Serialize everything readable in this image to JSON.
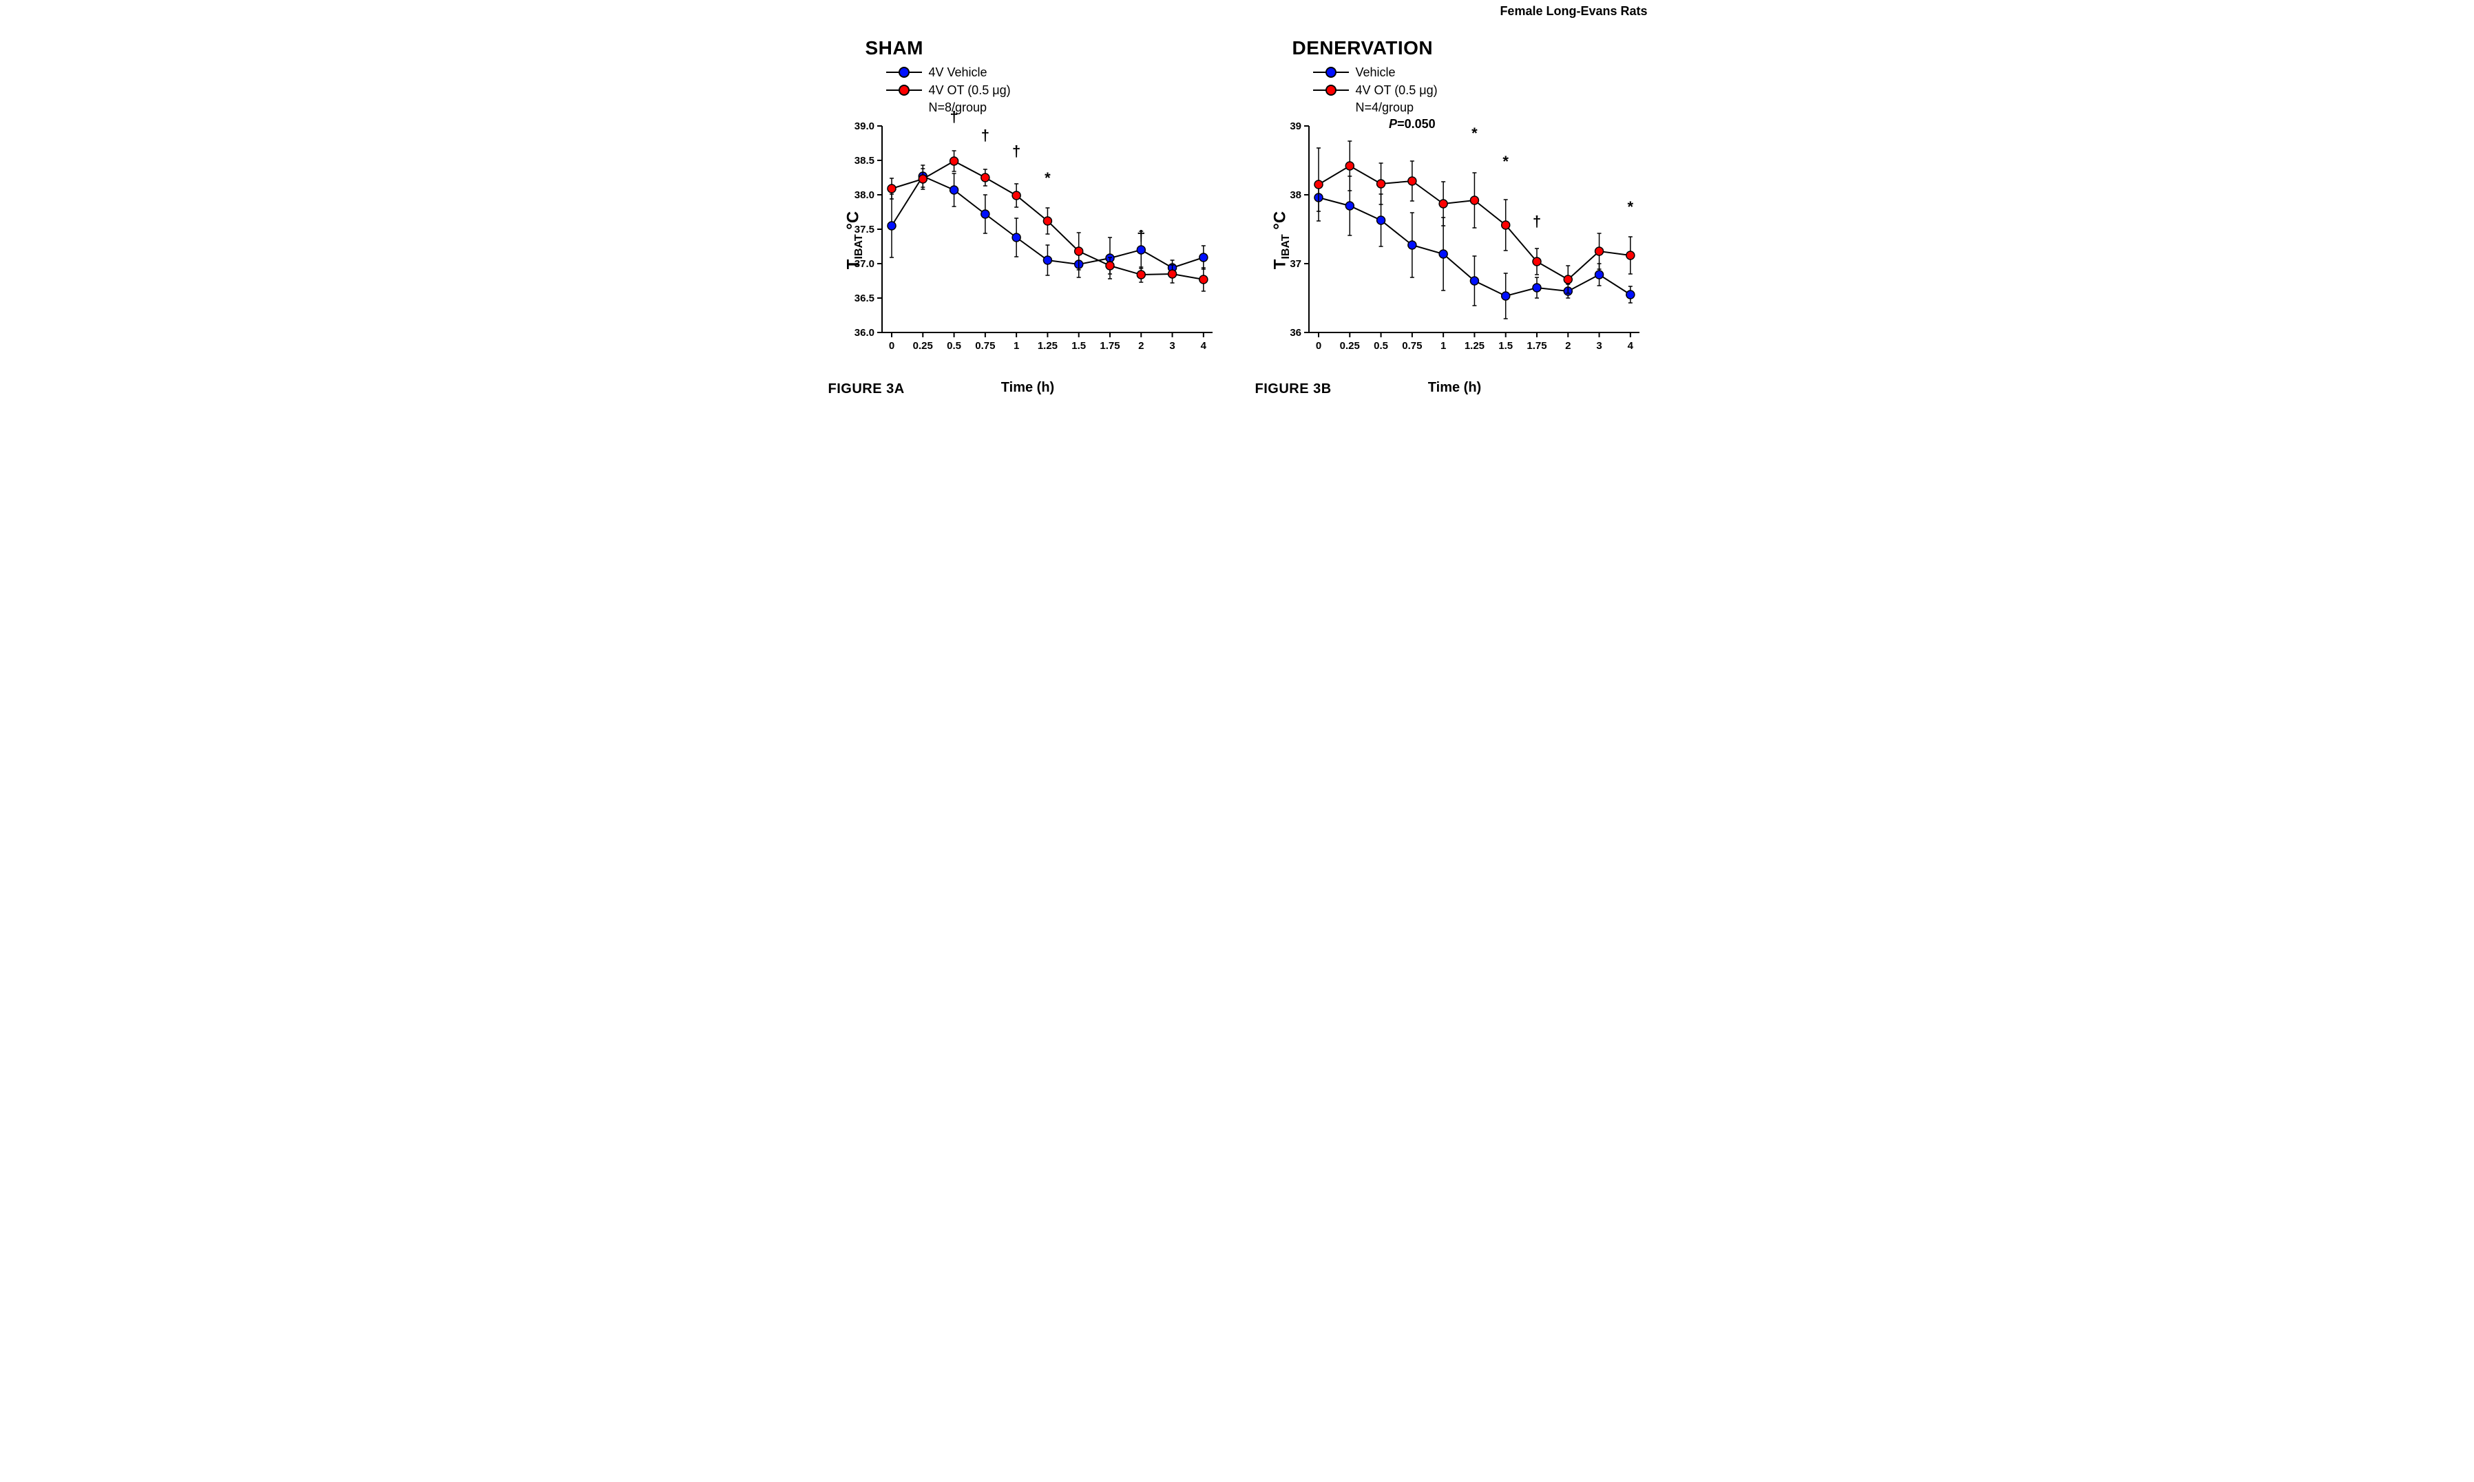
{
  "header_right": "Female Long-Evans Rats",
  "colors": {
    "vehicle": "#0010ff",
    "ot": "#ff0000",
    "axis": "#000000",
    "marker_stroke": "#000000",
    "background": "#ffffff"
  },
  "marker_radius": 6,
  "marker_stroke_width": 1.5,
  "line_width": 2,
  "error_cap": 6,
  "x_ticks": [
    "0",
    "0.25",
    "0.5",
    "0.75",
    "1",
    "1.25",
    "1.5",
    "1.75",
    "2",
    "3",
    "4"
  ],
  "panels": [
    {
      "id": "sham",
      "title": "SHAM",
      "figure_label": "FIGURE 3A",
      "legend": [
        {
          "color_key": "vehicle",
          "label": "4V Vehicle"
        },
        {
          "color_key": "ot",
          "label": "4V OT (0.5 μg)"
        }
      ],
      "legend_note": "N=8/group",
      "axes": {
        "ylabel": "T_IBAT °C",
        "xlabel": "Time (h)",
        "ylim": [
          36.0,
          39.0
        ],
        "ytick_step": 0.5,
        "y_tick_decimals": 1
      },
      "series": [
        {
          "color_key": "vehicle",
          "y": [
            37.55,
            38.27,
            38.07,
            37.72,
            37.38,
            37.05,
            36.99,
            37.08,
            37.2,
            36.94,
            37.09
          ],
          "err": [
            0.46,
            0.16,
            0.24,
            0.28,
            0.28,
            0.22,
            0.19,
            0.3,
            0.27,
            0.11,
            0.17
          ]
        },
        {
          "color_key": "ot",
          "y": [
            38.09,
            38.23,
            38.49,
            38.25,
            37.99,
            37.62,
            37.18,
            36.97,
            36.84,
            36.85,
            36.77
          ],
          "err": [
            0.15,
            0.15,
            0.15,
            0.12,
            0.17,
            0.19,
            0.27,
            0.12,
            0.11,
            0.13,
            0.17
          ]
        }
      ],
      "annotations": [
        {
          "xi": 2,
          "symbol": "†",
          "dy": -42
        },
        {
          "xi": 3,
          "symbol": "†",
          "dy": -42
        },
        {
          "xi": 4,
          "symbol": "†",
          "dy": -40
        },
        {
          "xi": 5,
          "symbol": "*",
          "dy": -36
        },
        {
          "xi": 8,
          "symbol": "†",
          "dy": -38
        }
      ],
      "extra_text": []
    },
    {
      "id": "denervation",
      "title": "DENERVATION",
      "figure_label": "FIGURE 3B",
      "legend": [
        {
          "color_key": "vehicle",
          "label": "Vehicle"
        },
        {
          "color_key": "ot",
          "label": "4V OT (0.5 μg)"
        }
      ],
      "legend_note": "N=4/group",
      "axes": {
        "ylabel": "T_IBAT °C",
        "xlabel": "Time (h)",
        "ylim": [
          36.0,
          39.0
        ],
        "ytick_step": 1,
        "y_tick_decimals": 0
      },
      "series": [
        {
          "color_key": "vehicle",
          "y": [
            37.96,
            37.84,
            37.63,
            37.27,
            37.14,
            36.75,
            36.53,
            36.65,
            36.6,
            36.84,
            36.55
          ],
          "err": [
            0.2,
            0.43,
            0.38,
            0.47,
            0.53,
            0.36,
            0.33,
            0.15,
            0.1,
            0.16,
            0.12
          ]
        },
        {
          "color_key": "ot",
          "y": [
            38.15,
            38.42,
            38.16,
            38.2,
            37.87,
            37.92,
            37.56,
            37.03,
            36.77,
            37.18,
            37.12
          ],
          "err": [
            0.53,
            0.36,
            0.3,
            0.29,
            0.32,
            0.4,
            0.37,
            0.19,
            0.2,
            0.26,
            0.27
          ]
        }
      ],
      "annotations": [
        {
          "xi": 5,
          "symbol": "*",
          "dy": -50
        },
        {
          "xi": 6,
          "symbol": "*",
          "dy": -48
        },
        {
          "xi": 7,
          "symbol": "†",
          "dy": -32
        },
        {
          "xi": 10,
          "symbol": "*",
          "dy": -36
        }
      ],
      "extra_text": [
        {
          "xi": 3,
          "text": "P=0.050",
          "dy": -48,
          "italic_prefix": "P"
        }
      ]
    }
  ]
}
